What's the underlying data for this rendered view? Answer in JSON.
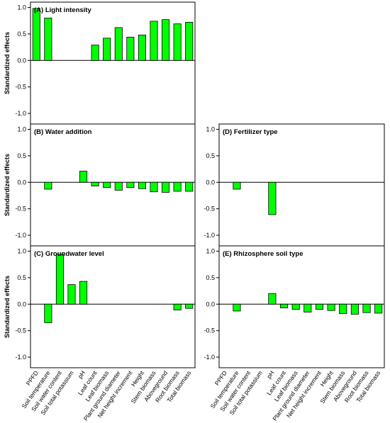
{
  "colors": {
    "bar_fill": "#00ff00",
    "bar_stroke": "#000000",
    "axis": "#000000"
  },
  "categories": [
    "PPFD",
    "Soil temperature",
    "Soil water content",
    "Soil total potassium",
    "pH",
    "Leaf count",
    "Leaf biomass",
    "Plant ground diameter",
    "Net height increment",
    "Height",
    "Stem biomass",
    "Aboveground",
    "Root biomass",
    "Total biomass"
  ],
  "y_tick_labels": [
    "1.0",
    "0.5",
    "0.0",
    "-0.5",
    "-1.0"
  ],
  "chart_data": [
    {
      "type": "bar",
      "title": "(A) Light intensity",
      "ylabel": "Standardized effects",
      "ylim": [
        -1.2,
        1.1
      ],
      "categories": [
        "PPFD",
        "Soil temperature",
        "Soil water content",
        "Soil total potassium",
        "pH",
        "Leaf count",
        "Leaf biomass",
        "Plant ground diameter",
        "Net height increment",
        "Height",
        "Stem biomass",
        "Aboveground",
        "Root biomass",
        "Total biomass"
      ],
      "values": [
        0.98,
        0.8,
        null,
        null,
        null,
        0.29,
        0.42,
        0.62,
        0.44,
        0.48,
        0.74,
        0.77,
        0.69,
        0.72
      ]
    },
    {
      "type": "bar",
      "title": "(B) Water addition",
      "ylabel": "Standardized effects",
      "ylim": [
        -1.2,
        1.1
      ],
      "categories": [
        "PPFD",
        "Soil temperature",
        "Soil water content",
        "Soil total potassium",
        "pH",
        "Leaf count",
        "Leaf biomass",
        "Plant ground diameter",
        "Net height increment",
        "Height",
        "Stem biomass",
        "Aboveground",
        "Root biomass",
        "Total biomass"
      ],
      "values": [
        null,
        -0.13,
        null,
        null,
        0.21,
        -0.07,
        -0.1,
        -0.15,
        -0.1,
        -0.12,
        -0.18,
        -0.19,
        -0.17,
        -0.17
      ]
    },
    {
      "type": "bar",
      "title": "(C) Groundwater level",
      "ylabel": "Standardized effects",
      "ylim": [
        -1.2,
        1.1
      ],
      "categories": [
        "PPFD",
        "Soil temperature",
        "Soil water content",
        "Soil total potassium",
        "pH",
        "Leaf count",
        "Leaf biomass",
        "Plant ground diameter",
        "Net height increment",
        "Height",
        "Stem biomass",
        "Aboveground",
        "Root biomass",
        "Total biomass"
      ],
      "values": [
        null,
        -0.35,
        0.94,
        0.37,
        0.43,
        null,
        null,
        null,
        null,
        null,
        null,
        null,
        -0.11,
        -0.08
      ]
    },
    {
      "type": "bar",
      "title": "(D) Fertilizer type",
      "ylabel": "",
      "ylim": [
        -1.2,
        1.1
      ],
      "categories": [
        "PPFD",
        "Soil temperature",
        "Soil water content",
        "Soil total potassium",
        "pH",
        "Leaf count",
        "Leaf biomass",
        "Plant ground diameter",
        "Net height increment",
        "Height",
        "Stem biomass",
        "Aboveground",
        "Root biomass",
        "Total biomass"
      ],
      "values": [
        null,
        -0.13,
        null,
        null,
        -0.61,
        null,
        null,
        null,
        null,
        null,
        null,
        null,
        null,
        null
      ]
    },
    {
      "type": "bar",
      "title": "(E) Rhizosphere soil type",
      "ylabel": "",
      "ylim": [
        -1.2,
        1.1
      ],
      "categories": [
        "PPFD",
        "Soil temperature",
        "Soil water content",
        "Soil total potassium",
        "pH",
        "Leaf count",
        "Leaf biomass",
        "Plant ground diameter",
        "Net height increment",
        "Height",
        "Stem biomass",
        "Aboveground",
        "Root biomass",
        "Total biomass"
      ],
      "values": [
        null,
        -0.13,
        null,
        null,
        0.2,
        -0.07,
        -0.1,
        -0.15,
        -0.1,
        -0.12,
        -0.18,
        -0.19,
        -0.16,
        -0.17
      ]
    }
  ]
}
